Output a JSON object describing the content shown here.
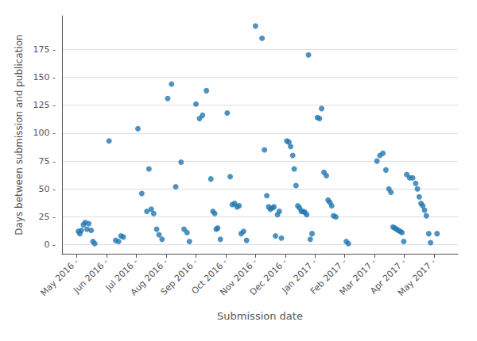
{
  "chart_data": {
    "type": "scatter",
    "xlabel": "Submission date",
    "ylabel": "Days between submission and publication",
    "color": "#2277b0",
    "grid": "y",
    "xlim": [
      -0.5,
      12.8
    ],
    "xticks": [
      {
        "value": 0,
        "label": "May 2016 -"
      },
      {
        "value": 1,
        "label": "Jun 2016 -"
      },
      {
        "value": 2,
        "label": "Jul 2016 -"
      },
      {
        "value": 3,
        "label": "Aug 2016 -"
      },
      {
        "value": 4,
        "label": "Sep 2016 -"
      },
      {
        "value": 5,
        "label": "Oct 2016 -"
      },
      {
        "value": 6,
        "label": "Nov 2016 -"
      },
      {
        "value": 7,
        "label": "Dec 2016 -"
      },
      {
        "value": 8,
        "label": "Jan 2017 -"
      },
      {
        "value": 9,
        "label": "Feb 2017 -"
      },
      {
        "value": 10,
        "label": "Mar 2017 -"
      },
      {
        "value": 11,
        "label": "Apr 2017 -"
      },
      {
        "value": 12,
        "label": "May 2017 -"
      }
    ],
    "ylim": [
      -8,
      205
    ],
    "yticks": [
      {
        "value": 0,
        "label": "0 -"
      },
      {
        "value": 25,
        "label": "25 -"
      },
      {
        "value": 50,
        "label": "50 -"
      },
      {
        "value": 75,
        "label": "75 -"
      },
      {
        "value": 100,
        "label": "100 -"
      },
      {
        "value": 125,
        "label": "125 -"
      },
      {
        "value": 150,
        "label": "150 -"
      },
      {
        "value": 175,
        "label": "175 -"
      }
    ],
    "x": [
      0.05,
      0.1,
      0.15,
      0.22,
      0.28,
      0.34,
      0.4,
      0.48,
      0.54,
      0.6,
      1.08,
      1.3,
      1.4,
      1.48,
      1.56,
      2.05,
      2.18,
      2.35,
      2.42,
      2.5,
      2.58,
      2.68,
      2.76,
      2.86,
      3.05,
      3.18,
      3.32,
      3.5,
      3.6,
      3.7,
      3.78,
      4.0,
      4.12,
      4.22,
      4.35,
      4.5,
      4.57,
      4.63,
      4.68,
      4.73,
      4.82,
      5.05,
      5.15,
      5.22,
      5.3,
      5.38,
      5.45,
      5.52,
      5.6,
      5.7,
      6.0,
      6.22,
      6.3,
      6.38,
      6.44,
      6.5,
      6.56,
      6.62,
      6.67,
      6.74,
      6.8,
      6.87,
      7.05,
      7.12,
      7.18,
      7.25,
      7.3,
      7.36,
      7.42,
      7.48,
      7.54,
      7.6,
      7.66,
      7.72,
      7.78,
      7.84,
      7.9,
      8.08,
      8.15,
      8.22,
      8.3,
      8.38,
      8.44,
      8.5,
      8.56,
      8.62,
      8.7,
      9.05,
      9.12,
      10.08,
      10.18,
      10.28,
      10.38,
      10.48,
      10.55,
      10.62,
      10.68,
      10.74,
      10.8,
      10.86,
      10.92,
      10.98,
      11.08,
      11.18,
      11.28,
      11.38,
      11.44,
      11.5,
      11.56,
      11.62,
      11.68,
      11.74,
      11.82,
      11.88,
      12.1
    ],
    "values": [
      12,
      10,
      13,
      18,
      20,
      14,
      19,
      13,
      3,
      1,
      93,
      4,
      3,
      8,
      7,
      104,
      46,
      30,
      68,
      32,
      28,
      14,
      9,
      5,
      131,
      144,
      52,
      74,
      14,
      11,
      3,
      126,
      113,
      116,
      138,
      59,
      30,
      28,
      14,
      15,
      5,
      118,
      61,
      36,
      37,
      34,
      35,
      10,
      12,
      4,
      196,
      185,
      85,
      44,
      34,
      32,
      33,
      34,
      8,
      27,
      30,
      6,
      93,
      92,
      88,
      80,
      68,
      53,
      35,
      33,
      30,
      30,
      29,
      27,
      170,
      5,
      10,
      114,
      113,
      122,
      65,
      62,
      40,
      38,
      35,
      26,
      25,
      3,
      1,
      75,
      80,
      82,
      67,
      50,
      47,
      16,
      15,
      14,
      13,
      12,
      11,
      3,
      63,
      60,
      60,
      55,
      50,
      43,
      37,
      35,
      31,
      26,
      10,
      2,
      10
    ]
  }
}
